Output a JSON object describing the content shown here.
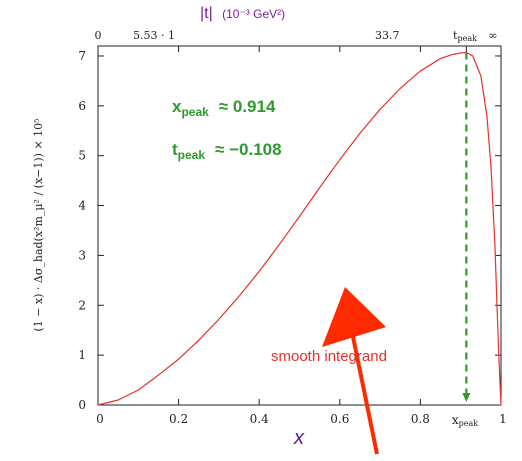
{
  "chart_data": {
    "type": "line",
    "x_axis": {
      "label": "x",
      "range": [
        0,
        1
      ],
      "ticks": [
        0,
        0.2,
        0.4,
        0.6,
        0.8,
        1
      ],
      "tick_labels": [
        "0",
        "0.2",
        "0.4",
        "0.6",
        "0.8",
        "1"
      ],
      "peak_tick_label": "x_peak"
    },
    "top_axis": {
      "title_var": "|t|",
      "title_unit": "(10⁻³ GeV²)",
      "tick_labels": [
        "0",
        "5.53 · 1",
        "",
        "",
        "33.7",
        "t_peak",
        "∞"
      ]
    },
    "y_axis": {
      "label": "(1 − x) · Δσ_had(x²m_μ² / (x−1)) × 10⁵",
      "range": [
        0,
        7.2
      ],
      "ticks": [
        0,
        1,
        2,
        3,
        4,
        5,
        6,
        7
      ]
    },
    "series": [
      {
        "color": "#e8302a",
        "x": [
          0,
          0.05,
          0.1,
          0.15,
          0.2,
          0.25,
          0.3,
          0.35,
          0.4,
          0.45,
          0.5,
          0.55,
          0.6,
          0.65,
          0.7,
          0.75,
          0.8,
          0.85,
          0.88,
          0.9,
          0.914,
          0.93,
          0.95,
          0.965,
          0.975,
          0.985,
          0.99,
          0.995,
          1.0
        ],
        "y": [
          0,
          0.1,
          0.3,
          0.6,
          0.92,
          1.3,
          1.72,
          2.18,
          2.68,
          3.22,
          3.78,
          4.36,
          4.92,
          5.45,
          5.93,
          6.35,
          6.7,
          6.95,
          7.03,
          7.06,
          7.07,
          7.0,
          6.6,
          5.8,
          4.8,
          3.2,
          2.0,
          0.9,
          0
        ]
      }
    ],
    "peak": {
      "x": 0.914,
      "y": 7.07,
      "line_color": "#2e9a2e",
      "x_peak_text": "≈ 0.914",
      "t_peak_text": "≈ −0.108"
    },
    "annotation": {
      "text": "smooth integrand",
      "color": "#e8302a",
      "arrow_color": "#ff2a00"
    }
  }
}
